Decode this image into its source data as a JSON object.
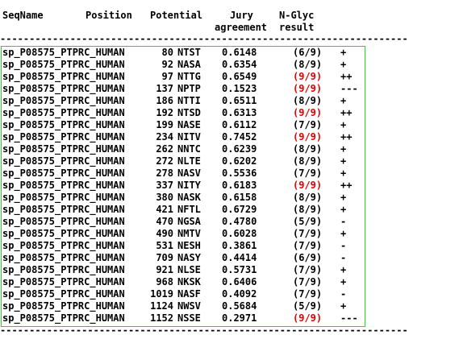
{
  "header": {
    "col_seqname": "SeqName",
    "col_position": "Position",
    "col_potential": "Potential",
    "col_jury_line1": "Jury",
    "col_jury_line2": "agreement",
    "col_nglyc_line1": "N-Glyc",
    "col_nglyc_line2": "result"
  },
  "separator": "----------------------------------------------------------------------",
  "colors": {
    "highlight": "#e60000",
    "box_border": "#33cc33"
  },
  "rows": [
    {
      "seq": "sp_P08575_PTPRC_HUMAN",
      "pos": "80",
      "motif": "NTST",
      "potential": "0.6148",
      "jury": "(6/9)",
      "result": "+",
      "jury_red": false
    },
    {
      "seq": "sp_P08575_PTPRC_HUMAN",
      "pos": "92",
      "motif": "NASA",
      "potential": "0.6354",
      "jury": "(8/9)",
      "result": "+",
      "jury_red": false
    },
    {
      "seq": "sp_P08575_PTPRC_HUMAN",
      "pos": "97",
      "motif": "NTTG",
      "potential": "0.6549",
      "jury": "(9/9)",
      "result": "++",
      "jury_red": true
    },
    {
      "seq": "sp_P08575_PTPRC_HUMAN",
      "pos": "137",
      "motif": "NPTP",
      "potential": "0.1523",
      "jury": "(9/9)",
      "result": "---",
      "jury_red": true
    },
    {
      "seq": "sp_P08575_PTPRC_HUMAN",
      "pos": "186",
      "motif": "NTTI",
      "potential": "0.6511",
      "jury": "(8/9)",
      "result": "+",
      "jury_red": false
    },
    {
      "seq": "sp_P08575_PTPRC_HUMAN",
      "pos": "192",
      "motif": "NTSD",
      "potential": "0.6313",
      "jury": "(9/9)",
      "result": "++",
      "jury_red": true
    },
    {
      "seq": "sp_P08575_PTPRC_HUMAN",
      "pos": "199",
      "motif": "NASE",
      "potential": "0.6112",
      "jury": "(7/9)",
      "result": "+",
      "jury_red": false
    },
    {
      "seq": "sp_P08575_PTPRC_HUMAN",
      "pos": "234",
      "motif": "NITV",
      "potential": "0.7452",
      "jury": "(9/9)",
      "result": "++",
      "jury_red": true
    },
    {
      "seq": "sp_P08575_PTPRC_HUMAN",
      "pos": "262",
      "motif": "NNTC",
      "potential": "0.6239",
      "jury": "(8/9)",
      "result": "+",
      "jury_red": false
    },
    {
      "seq": "sp_P08575_PTPRC_HUMAN",
      "pos": "272",
      "motif": "NLTE",
      "potential": "0.6202",
      "jury": "(8/9)",
      "result": "+",
      "jury_red": false
    },
    {
      "seq": "sp_P08575_PTPRC_HUMAN",
      "pos": "278",
      "motif": "NASV",
      "potential": "0.5536",
      "jury": "(7/9)",
      "result": "+",
      "jury_red": false
    },
    {
      "seq": "sp_P08575_PTPRC_HUMAN",
      "pos": "337",
      "motif": "NITY",
      "potential": "0.6183",
      "jury": "(9/9)",
      "result": "++",
      "jury_red": true
    },
    {
      "seq": "sp_P08575_PTPRC_HUMAN",
      "pos": "380",
      "motif": "NASK",
      "potential": "0.6158",
      "jury": "(8/9)",
      "result": "+",
      "jury_red": false
    },
    {
      "seq": "sp_P08575_PTPRC_HUMAN",
      "pos": "421",
      "motif": "NFTL",
      "potential": "0.6729",
      "jury": "(8/9)",
      "result": "+",
      "jury_red": false
    },
    {
      "seq": "sp_P08575_PTPRC_HUMAN",
      "pos": "470",
      "motif": "NGSA",
      "potential": "0.4780",
      "jury": "(5/9)",
      "result": "-",
      "jury_red": false
    },
    {
      "seq": "sp_P08575_PTPRC_HUMAN",
      "pos": "490",
      "motif": "NMTV",
      "potential": "0.6028",
      "jury": "(7/9)",
      "result": "+",
      "jury_red": false
    },
    {
      "seq": "sp_P08575_PTPRC_HUMAN",
      "pos": "531",
      "motif": "NESH",
      "potential": "0.3861",
      "jury": "(7/9)",
      "result": "-",
      "jury_red": false
    },
    {
      "seq": "sp_P08575_PTPRC_HUMAN",
      "pos": "709",
      "motif": "NASY",
      "potential": "0.4414",
      "jury": "(6/9)",
      "result": "-",
      "jury_red": false
    },
    {
      "seq": "sp_P08575_PTPRC_HUMAN",
      "pos": "921",
      "motif": "NLSE",
      "potential": "0.5731",
      "jury": "(7/9)",
      "result": "+",
      "jury_red": false
    },
    {
      "seq": "sp_P08575_PTPRC_HUMAN",
      "pos": "968",
      "motif": "NKSK",
      "potential": "0.6406",
      "jury": "(7/9)",
      "result": "+",
      "jury_red": false
    },
    {
      "seq": "sp_P08575_PTPRC_HUMAN",
      "pos": "1019",
      "motif": "NASF",
      "potential": "0.4092",
      "jury": "(7/9)",
      "result": "-",
      "jury_red": false
    },
    {
      "seq": "sp_P08575_PTPRC_HUMAN",
      "pos": "1124",
      "motif": "NWSV",
      "potential": "0.5684",
      "jury": "(5/9)",
      "result": "+",
      "jury_red": false
    },
    {
      "seq": "sp_P08575_PTPRC_HUMAN",
      "pos": "1152",
      "motif": "NSSE",
      "potential": "0.2971",
      "jury": "(9/9)",
      "result": "---",
      "jury_red": true
    }
  ]
}
